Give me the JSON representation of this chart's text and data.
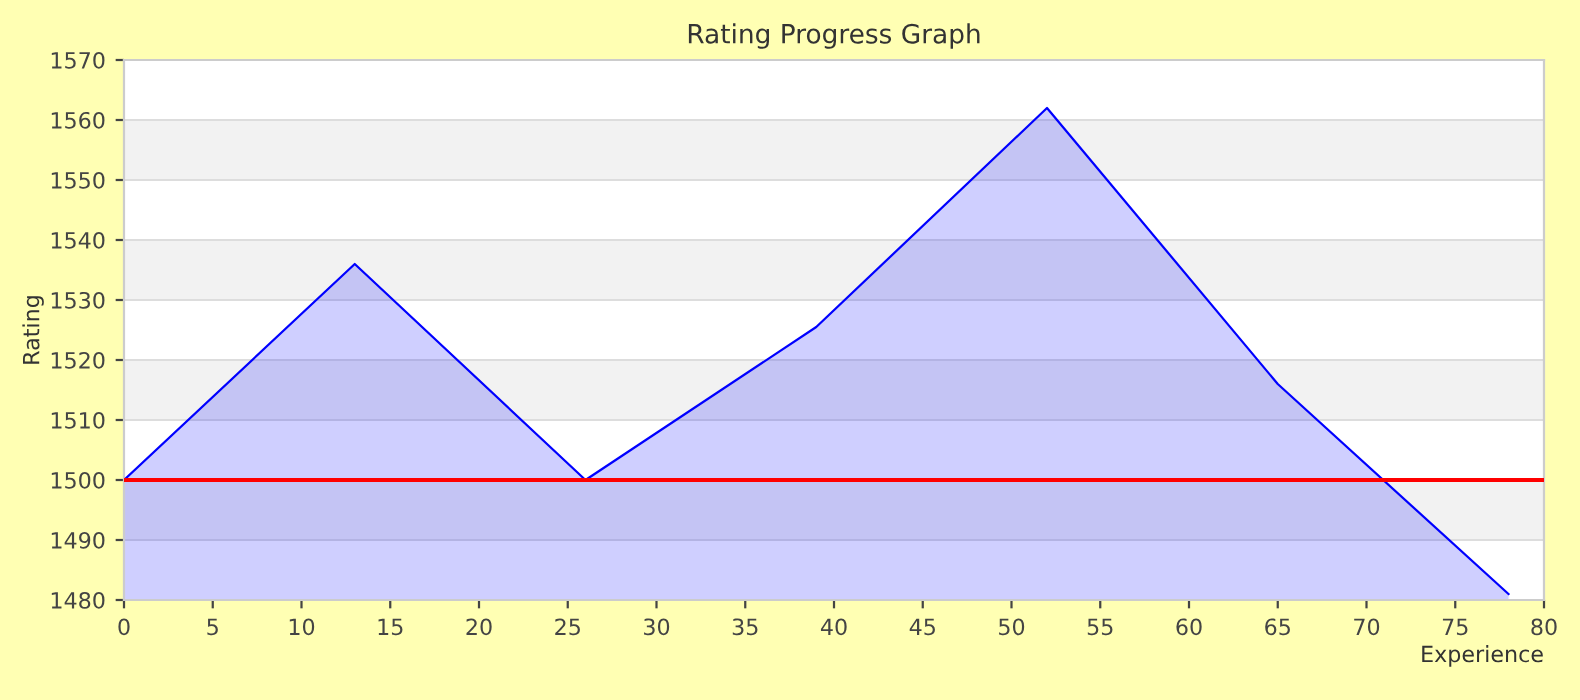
{
  "chart_data": {
    "type": "area",
    "title": "Rating Progress Graph",
    "xlabel": "Experience",
    "ylabel": "Rating",
    "x": [
      0,
      13,
      26,
      39,
      52,
      65,
      78
    ],
    "series": [
      {
        "color": "#0000ff",
        "values": [
          1500,
          1536,
          1500,
          1525.5,
          1562,
          1516,
          1481
        ]
      }
    ],
    "xlim": [
      0,
      80
    ],
    "xticks": [
      0,
      5,
      10,
      15,
      20,
      25,
      30,
      35,
      40,
      45,
      50,
      55,
      60,
      65,
      70,
      75,
      80
    ],
    "ylim": [
      1480,
      1570
    ],
    "yticks": [
      1480,
      1490,
      1500,
      1510,
      1520,
      1530,
      1540,
      1550,
      1560,
      1570
    ],
    "grid": "y",
    "legend": false,
    "ref_lines": [
      {
        "axis": "y",
        "value": 1500,
        "color": "#ff0000"
      }
    ],
    "bands": [
      {
        "axis": "y",
        "from": 1490,
        "to": 1500,
        "color": "#f2f2f2"
      },
      {
        "axis": "y",
        "from": 1510,
        "to": 1520,
        "color": "#f2f2f2"
      },
      {
        "axis": "y",
        "from": 1530,
        "to": 1540,
        "color": "#f2f2f2"
      },
      {
        "axis": "y",
        "from": 1550,
        "to": 1560,
        "color": "#f2f2f2"
      }
    ]
  }
}
